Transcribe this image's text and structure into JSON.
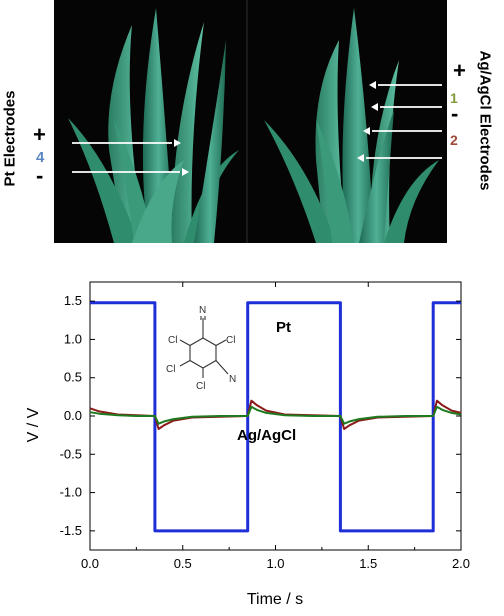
{
  "photo": {
    "left_label": "Pt Electrodes",
    "right_label": "Ag/AgCl Electrodes",
    "left_plus": "+",
    "left_num": "4",
    "left_minus": "-",
    "right_plus": "+",
    "right_num1": "1",
    "right_minus": "-",
    "right_num2": "2",
    "num_colors": {
      "n4": "#5b86c3",
      "n1": "#7f9a3a",
      "n2": "#9e4a3a"
    }
  },
  "molecule": {
    "atoms": [
      "N",
      "Cl",
      "Cl",
      "Cl",
      "Cl",
      "N"
    ]
  },
  "chart_data": {
    "type": "line",
    "title": "",
    "xlabel": "Time / s",
    "ylabel": "V / V",
    "xlim": [
      0.0,
      2.0
    ],
    "ylim": [
      -1.75,
      1.75
    ],
    "xticks": [
      "0.0",
      "0.5",
      "1.0",
      "1.5",
      "2.0"
    ],
    "yticks": [
      "1.5",
      "1.0",
      "0.5",
      "0.0",
      "-0.5",
      "-1.0",
      "-1.5"
    ],
    "annotations": [
      "Pt",
      "Ag/AgCl"
    ],
    "series": [
      {
        "color": "#1f2fd8",
        "x": [
          0.0,
          0.35,
          0.35,
          0.85,
          0.85,
          1.35,
          1.35,
          1.85,
          1.85,
          2.0
        ],
        "y": [
          1.48,
          1.48,
          -1.5,
          -1.5,
          1.48,
          1.48,
          -1.5,
          -1.5,
          1.48,
          1.48
        ]
      },
      {
        "color": "#8b1a1a",
        "x": [
          0.0,
          0.05,
          0.15,
          0.25,
          0.35,
          0.37,
          0.4,
          0.45,
          0.55,
          0.7,
          0.85,
          0.87,
          0.9,
          0.95,
          1.05,
          1.2,
          1.35,
          1.37,
          1.4,
          1.45,
          1.55,
          1.7,
          1.85,
          1.87,
          1.9,
          1.95,
          2.0
        ],
        "y": [
          0.1,
          0.06,
          0.02,
          0.01,
          0.0,
          -0.17,
          -0.12,
          -0.06,
          -0.02,
          -0.01,
          0.0,
          0.2,
          0.14,
          0.07,
          0.02,
          0.01,
          0.0,
          -0.17,
          -0.12,
          -0.06,
          -0.02,
          -0.01,
          0.0,
          0.2,
          0.14,
          0.07,
          0.04
        ]
      },
      {
        "color": "#1e7a1e",
        "x": [
          0.0,
          0.05,
          0.15,
          0.25,
          0.35,
          0.37,
          0.4,
          0.45,
          0.55,
          0.7,
          0.85,
          0.87,
          0.9,
          0.95,
          1.05,
          1.2,
          1.35,
          1.37,
          1.4,
          1.45,
          1.55,
          1.7,
          1.85,
          1.87,
          1.9,
          1.95,
          2.0
        ],
        "y": [
          0.05,
          0.03,
          0.01,
          0.0,
          0.0,
          -0.1,
          -0.07,
          -0.04,
          -0.01,
          0.0,
          0.0,
          0.12,
          0.08,
          0.04,
          0.01,
          0.0,
          0.0,
          -0.1,
          -0.07,
          -0.04,
          -0.01,
          0.0,
          0.0,
          0.12,
          0.08,
          0.04,
          0.02
        ]
      }
    ]
  }
}
